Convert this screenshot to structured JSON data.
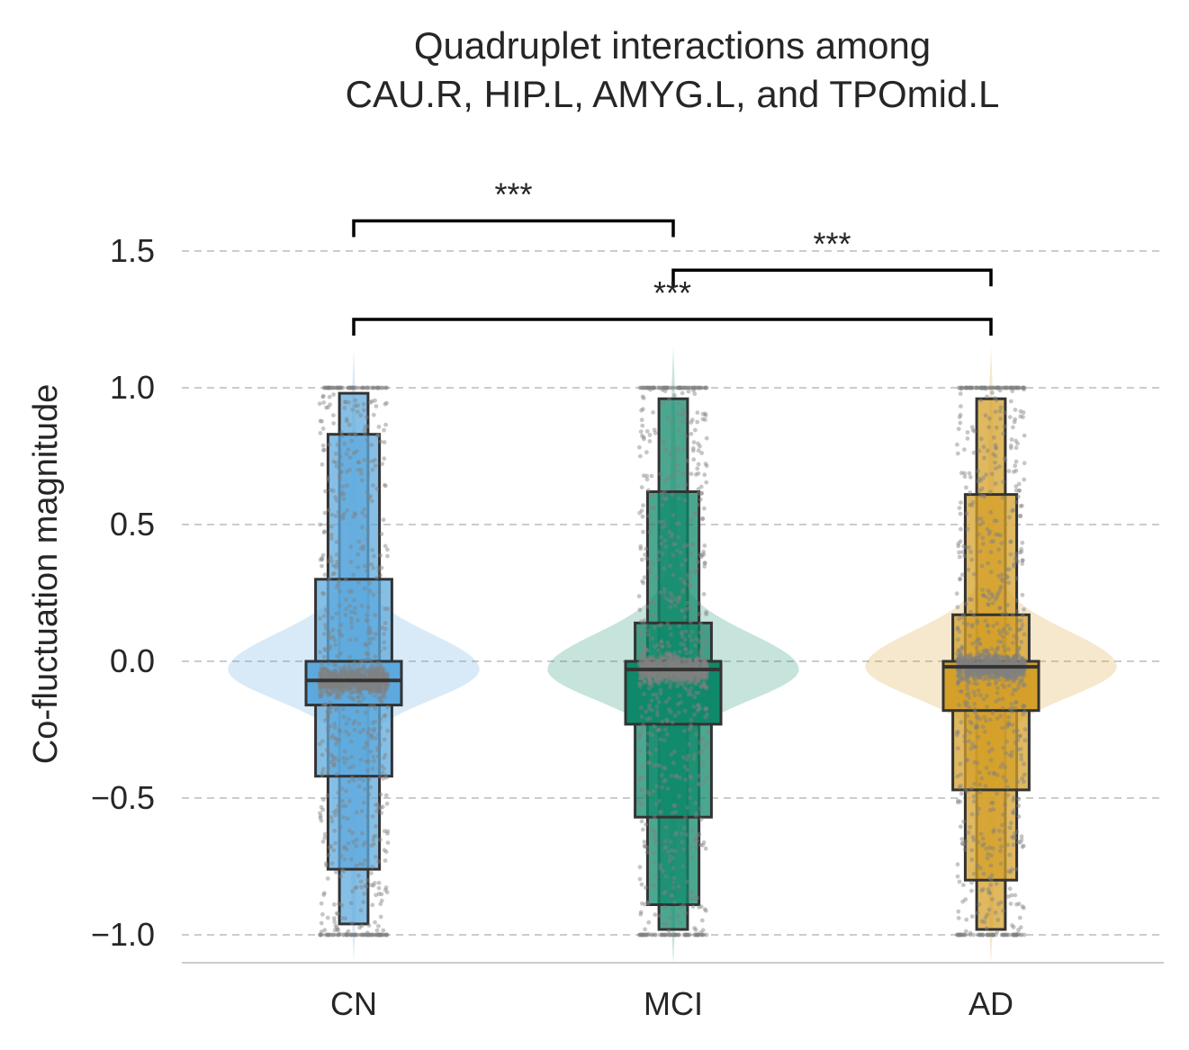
{
  "chart_data": {
    "type": "boxen",
    "title": [
      "Quadruplet interactions among",
      "CAU.R, HIP.L, AMYG.L, and TPOmid.L"
    ],
    "xlabel": "",
    "ylabel": "Co-fluctuation magnitude",
    "ylim": [
      -1.1,
      1.6
    ],
    "yticks": [
      1.5,
      1.0,
      0.5,
      0.0,
      -0.5,
      -1.0
    ],
    "ytick_labels": [
      "1.5",
      "1.0",
      "0.5",
      "0.0",
      "−0.5",
      "−1.0"
    ],
    "grid": "horizontal dashed",
    "categories": [
      "CN",
      "MCI",
      "AD"
    ],
    "colors": {
      "CN": "#5DA9DD",
      "MCI": "#10896B",
      "AD": "#D4A02A",
      "points": "#808080"
    },
    "violin": [
      {
        "group": "CN",
        "min": -1.1,
        "max": 1.14,
        "mode": -0.03,
        "peak_halfwidth": 0.39
      },
      {
        "group": "MCI",
        "min": -1.11,
        "max": 1.15,
        "mode": -0.03,
        "peak_halfwidth": 0.39
      },
      {
        "group": "AD",
        "min": -1.11,
        "max": 1.15,
        "mode": -0.02,
        "peak_halfwidth": 0.39
      }
    ],
    "boxen": [
      {
        "group": "CN",
        "median": -0.07,
        "boxes": [
          {
            "low": -0.16,
            "high": 0.0
          },
          {
            "low": -0.42,
            "high": 0.3
          },
          {
            "low": -0.76,
            "high": 0.83
          },
          {
            "low": -0.96,
            "high": 0.98
          }
        ]
      },
      {
        "group": "MCI",
        "median": -0.03,
        "boxes": [
          {
            "low": -0.23,
            "high": 0.0
          },
          {
            "low": -0.57,
            "high": 0.14
          },
          {
            "low": -0.89,
            "high": 0.62
          },
          {
            "low": -0.98,
            "high": 0.96
          }
        ]
      },
      {
        "group": "AD",
        "median": -0.02,
        "boxes": [
          {
            "low": -0.18,
            "high": 0.0
          },
          {
            "low": -0.47,
            "high": 0.17
          },
          {
            "low": -0.8,
            "high": 0.61
          },
          {
            "low": -0.98,
            "high": 0.96
          }
        ]
      }
    ],
    "significance": [
      {
        "from": "CN",
        "to": "MCI",
        "y": 1.61,
        "label": "***"
      },
      {
        "from": "MCI",
        "to": "AD",
        "y": 1.43,
        "label": "***"
      },
      {
        "from": "CN",
        "to": "AD",
        "y": 1.25,
        "label": "***"
      }
    ]
  }
}
